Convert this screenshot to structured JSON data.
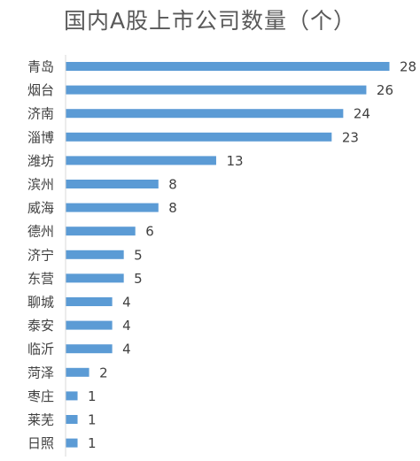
{
  "chart_data": {
    "type": "bar",
    "orientation": "horizontal",
    "title": "国内A股上市公司数量（个）",
    "categories": [
      "青岛",
      "烟台",
      "济南",
      "淄博",
      "潍坊",
      "滨州",
      "威海",
      "德州",
      "济宁",
      "东营",
      "聊城",
      "泰安",
      "临沂",
      "菏泽",
      "枣庄",
      "莱芜",
      "日照"
    ],
    "values": [
      28,
      26,
      24,
      23,
      13,
      8,
      8,
      6,
      5,
      5,
      4,
      4,
      4,
      2,
      1,
      1,
      1
    ],
    "xlim": [
      0,
      28
    ],
    "grid": false,
    "legend": "none",
    "data_labels": true,
    "bar_color": "#5B9BD5",
    "axis_color": "#D9D9D9",
    "text_color": "#404040"
  }
}
